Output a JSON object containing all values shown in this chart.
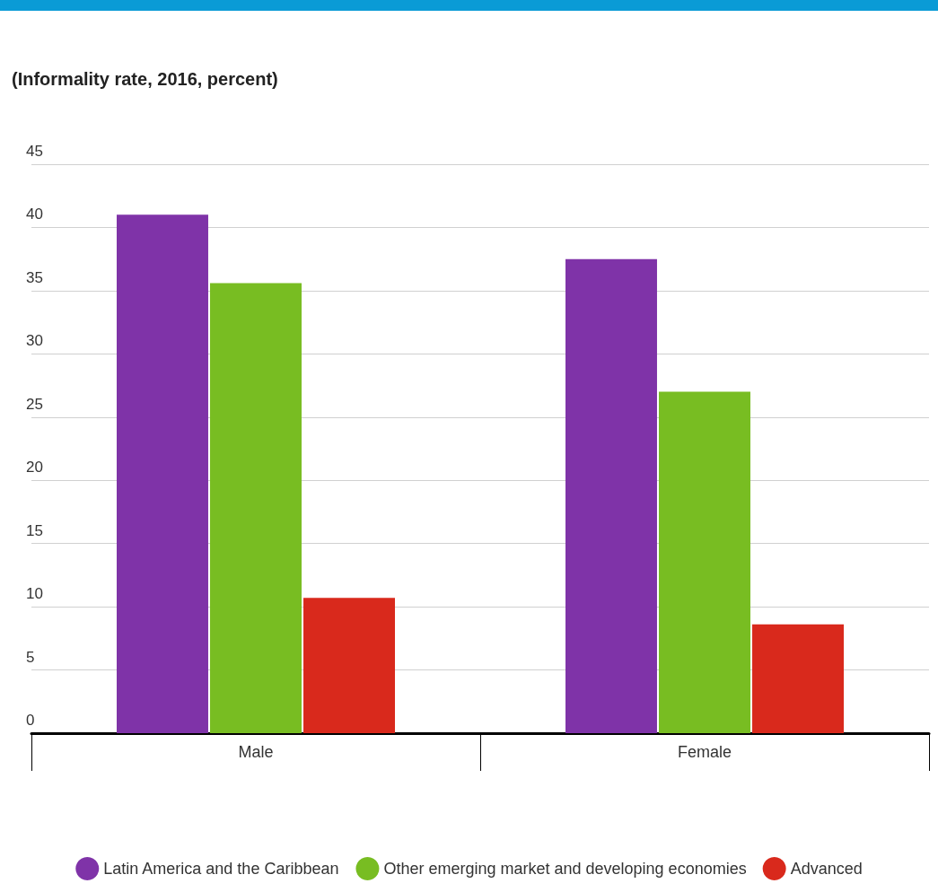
{
  "chart_data": {
    "type": "bar",
    "title": "(Informality rate, 2016, percent)",
    "categories": [
      "Male",
      "Female"
    ],
    "series": [
      {
        "name": "Latin America and the Caribbean",
        "color": "#7f33a8",
        "values": [
          41,
          37.5
        ]
      },
      {
        "name": "Other emerging market and developing economies",
        "color": "#78bd22",
        "values": [
          35.6,
          27.0
        ]
      },
      {
        "name": "Advanced",
        "color": "#d9291c",
        "values": [
          10.7,
          8.6
        ]
      }
    ],
    "ylim": [
      0,
      45
    ],
    "yticks": [
      0,
      5,
      10,
      15,
      20,
      25,
      30,
      35,
      40,
      45
    ],
    "grid": "y",
    "legend": "bottom"
  }
}
